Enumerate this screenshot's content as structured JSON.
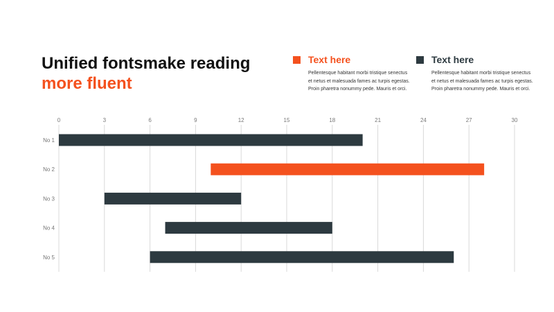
{
  "title": {
    "line1": "Unified fontsmake reading",
    "line2": "more fluent"
  },
  "legend": [
    {
      "label": "Text here",
      "color": "#f4511e",
      "description": "Pellentesque habitant morbi tristique senectus et netus et malesuada fames ac turpis egestas. Proin pharetra nonummy pede. Mauris et orci."
    },
    {
      "label": "Text here",
      "color": "#2d3a40",
      "description": "Pellentesque habitant morbi tristique senectus et netus et malesuada fames ac turpis egestas. Proin pharetra nonummy pede. Mauris et orci."
    }
  ],
  "chart_data": {
    "type": "bar",
    "orientation": "horizontal",
    "categories": [
      "No 1",
      "No 2",
      "No 3",
      "No 4",
      "No 5"
    ],
    "ranges": [
      {
        "start": 0,
        "end": 20,
        "color": "#2d3a40"
      },
      {
        "start": 10,
        "end": 28,
        "color": "#f4511e"
      },
      {
        "start": 3,
        "end": 12,
        "color": "#2d3a40"
      },
      {
        "start": 7,
        "end": 18,
        "color": "#2d3a40"
      },
      {
        "start": 6,
        "end": 26,
        "color": "#2d3a40"
      }
    ],
    "xlim": [
      0,
      30
    ],
    "xticks": [
      0,
      3,
      6,
      9,
      12,
      15,
      18,
      21,
      24,
      27,
      30
    ],
    "grid": true
  }
}
